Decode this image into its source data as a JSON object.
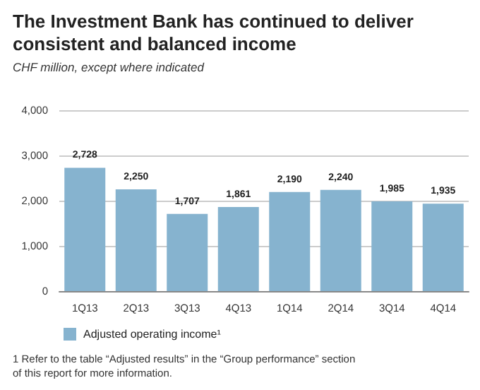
{
  "chart_data": {
    "type": "bar",
    "title": "The Investment Bank has continued to deliver consistent and balanced income",
    "subtitle": "CHF million, except where indicated",
    "categories": [
      "1Q13",
      "2Q13",
      "3Q13",
      "4Q13",
      "1Q14",
      "2Q14",
      "3Q14",
      "4Q14"
    ],
    "series": [
      {
        "name": "Adjusted operating income¹",
        "color": "#86b3cf",
        "values": [
          2728,
          2250,
          1707,
          1861,
          2190,
          2240,
          1985,
          1935
        ],
        "value_labels": [
          "2,728",
          "2,250",
          "1,707",
          "1,861",
          "2,190",
          "2,240",
          "1,985",
          "1,935"
        ]
      }
    ],
    "ylim": [
      0,
      4000
    ],
    "yticks": [
      {
        "value": 0,
        "label": "0"
      },
      {
        "value": 1000,
        "label": "1,000"
      },
      {
        "value": 2000,
        "label": "2,000"
      },
      {
        "value": 3000,
        "label": "3,000"
      },
      {
        "value": 4000,
        "label": "4,000"
      }
    ],
    "grid": "y",
    "legend": "bottom",
    "annotations": [
      "1 Refer to the table “Adjusted results” in the “Group performance” section of this report for more information."
    ]
  }
}
